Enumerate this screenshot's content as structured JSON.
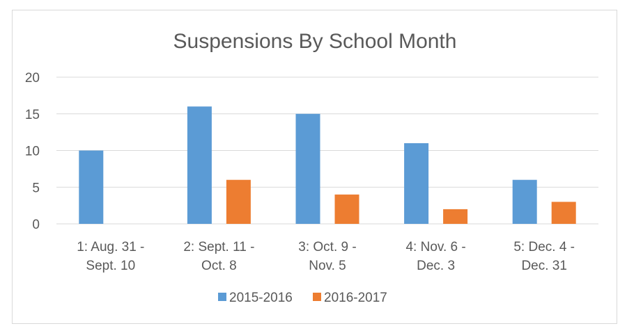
{
  "chart_data": {
    "type": "bar",
    "title": "Suspensions By School Month",
    "xlabel": "",
    "ylabel": "",
    "categories": [
      [
        "1: Aug. 31 -",
        "Sept. 10"
      ],
      [
        "2: Sept. 11 -",
        "Oct. 8"
      ],
      [
        "3: Oct. 9 -",
        "Nov. 5"
      ],
      [
        "4: Nov. 6 -",
        "Dec. 3"
      ],
      [
        "5: Dec. 4 -",
        "Dec. 31"
      ]
    ],
    "series": [
      {
        "name": "2015-2016",
        "color": "#5b9bd5",
        "values": [
          10,
          16,
          15,
          11,
          6
        ]
      },
      {
        "name": "2016-2017",
        "color": "#ed7d31",
        "values": [
          0,
          6,
          4,
          2,
          3
        ]
      }
    ],
    "ylim": [
      0,
      20
    ],
    "yticks": [
      0,
      5,
      10,
      15,
      20
    ],
    "grid": true,
    "gridColor": "#d9d9d9",
    "legend": "bottom"
  }
}
